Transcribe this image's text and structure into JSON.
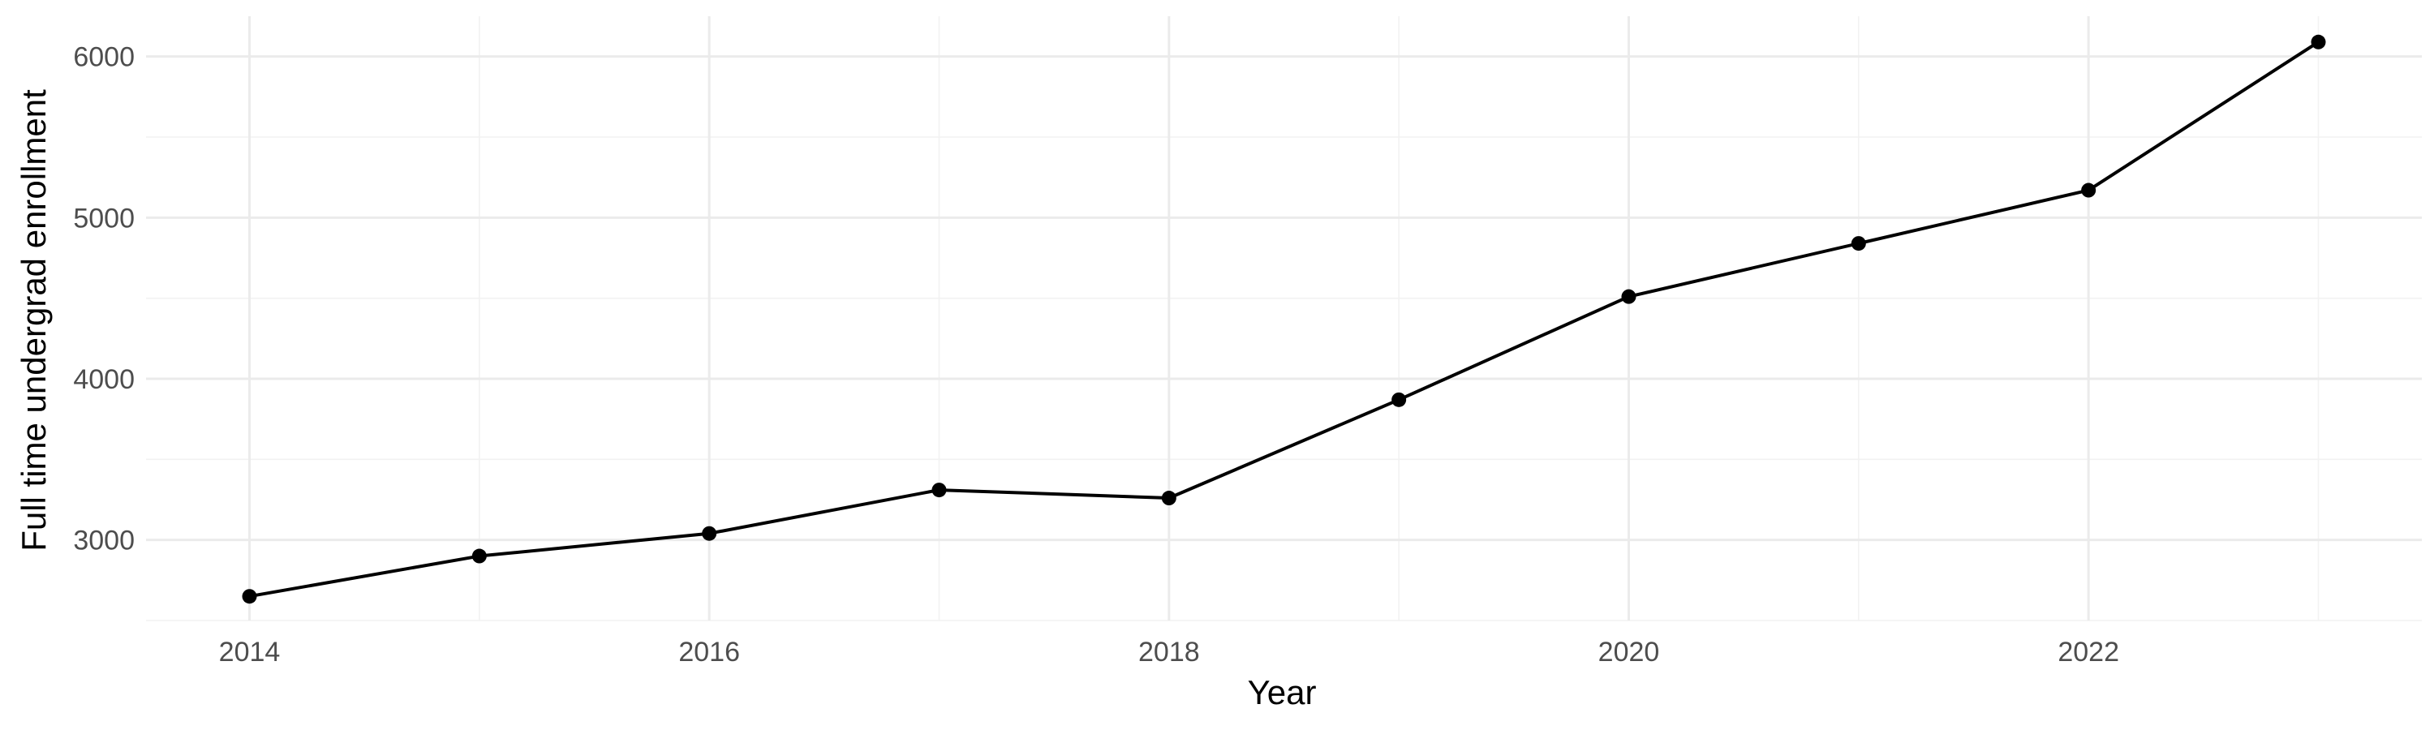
{
  "chart_data": {
    "type": "line",
    "title": "",
    "xlabel": "Year",
    "ylabel": "Full time undergrad enrollment",
    "x": [
      2014,
      2015,
      2016,
      2017,
      2018,
      2019,
      2020,
      2021,
      2022,
      2023
    ],
    "series": [
      {
        "values": [
          2650,
          2900,
          3040,
          3310,
          3260,
          3870,
          4510,
          4840,
          5170,
          6090
        ]
      }
    ],
    "xlim": [
      2013.55,
      2023.45
    ],
    "ylim": [
      2500,
      6250
    ],
    "x_ticks": [
      2014,
      2016,
      2018,
      2020,
      2022
    ],
    "x_tick_labels": [
      "2014",
      "2016",
      "2018",
      "2020",
      "2022"
    ],
    "y_ticks": [
      3000,
      4000,
      5000,
      6000
    ],
    "y_tick_labels": [
      "3000",
      "4000",
      "5000",
      "6000"
    ],
    "grid": true,
    "legend": "none",
    "colors": {
      "line": "#000000",
      "point": "#000000",
      "grid_major": "#ebebeb",
      "grid_minor": "#f2f2f2",
      "tick_text": "#4d4d4d",
      "background": "#ffffff"
    }
  }
}
